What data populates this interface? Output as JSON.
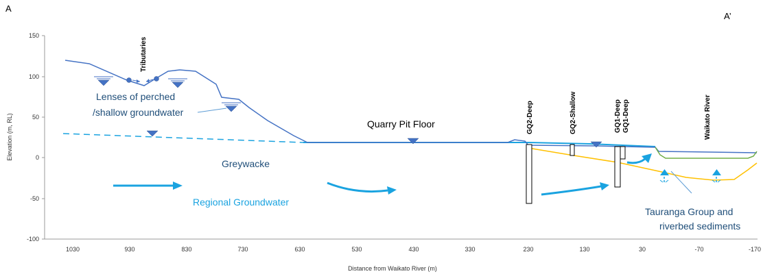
{
  "corner_left": "A",
  "corner_right": "A’",
  "y_axis": {
    "title": "Elevation (m, RL)",
    "range": [
      -100,
      150
    ],
    "ticks": [
      "150",
      "100",
      "50",
      "0",
      "-50",
      "-100"
    ]
  },
  "x_axis": {
    "title": "Distance from Waikato River (m)",
    "range": [
      1070,
      -170
    ],
    "reversed": true,
    "ticks": [
      "1030",
      "930",
      "830",
      "730",
      "630",
      "530",
      "430",
      "330",
      "230",
      "130",
      "30",
      "-70",
      "-170"
    ]
  },
  "labels": {
    "tributaries": "Tributaries",
    "perched_line1": "Lenses of perched",
    "perched_line2": "/shallow groundwater",
    "quarry_floor": "Quarry Pit Floor",
    "greywacke": "Greywacke",
    "regional_gw": "Regional Groundwater",
    "tauranga_line1": "Tauranga Group and",
    "tauranga_line2": "riverbed sediments"
  },
  "wells": {
    "gq2_deep": "GQ2-Deep",
    "gq2_shallow": "GQ2-Shallow",
    "gq1_deep_a": "GQ1-Deep",
    "gq1_deep_b": "GQ1-Deep",
    "waikato_river": "Waikato River"
  },
  "colors": {
    "ground_surface": "#4472c4",
    "water_table": "#1aa3e0",
    "sediment_base": "#ffc000",
    "river_bed": "#70ad47",
    "arrow": "#1aa3e0",
    "marker": "#4472c4"
  }
}
